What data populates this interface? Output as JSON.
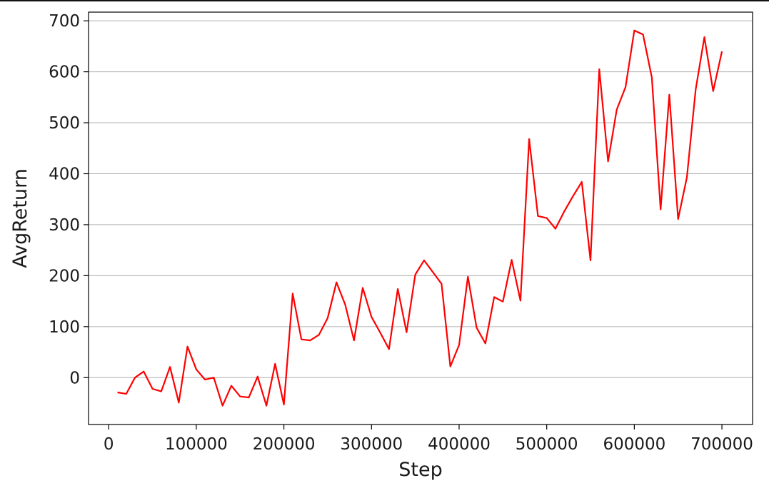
{
  "chart_data": {
    "type": "line",
    "title": "",
    "xlabel": "Step",
    "ylabel": "AvgReturn",
    "xlim": [
      -23000,
      735000
    ],
    "ylim": [
      -92,
      717
    ],
    "xticks": [
      0,
      100000,
      200000,
      300000,
      400000,
      500000,
      600000,
      700000
    ],
    "xtick_labels": [
      "0",
      "100000",
      "200000",
      "300000",
      "400000",
      "500000",
      "600000",
      "700000"
    ],
    "yticks": [
      0,
      100,
      200,
      300,
      400,
      500,
      600,
      700
    ],
    "ytick_labels": [
      "0",
      "100",
      "200",
      "300",
      "400",
      "500",
      "600",
      "700"
    ],
    "grid": "horizontal",
    "legend": "none",
    "series": [
      {
        "color": "#ff0000",
        "x": [
          10000,
          20000,
          30000,
          40000,
          50000,
          60000,
          70000,
          80000,
          90000,
          100000,
          110000,
          120000,
          130000,
          140000,
          150000,
          160000,
          170000,
          180000,
          190000,
          200000,
          210000,
          220000,
          230000,
          240000,
          250000,
          260000,
          270000,
          280000,
          290000,
          300000,
          310000,
          320000,
          330000,
          340000,
          350000,
          360000,
          370000,
          380000,
          390000,
          400000,
          410000,
          420000,
          430000,
          440000,
          450000,
          460000,
          470000,
          480000,
          490000,
          500000,
          510000,
          520000,
          530000,
          540000,
          550000,
          560000,
          570000,
          580000,
          590000,
          600000,
          610000,
          620000,
          630000,
          640000,
          650000,
          660000,
          670000,
          680000,
          690000,
          700000
        ],
        "values": [
          -29,
          -32,
          0,
          12,
          -22,
          -27,
          21,
          -49,
          61,
          16,
          -4,
          0,
          -55,
          -16,
          -37,
          -39,
          2,
          -55,
          27,
          -53,
          165,
          75,
          73,
          84,
          117,
          187,
          143,
          73,
          176,
          119,
          88,
          56,
          174,
          89,
          202,
          230,
          207,
          184,
          22,
          64,
          198,
          98,
          67,
          158,
          149,
          231,
          151,
          468,
          317,
          313,
          292,
          326,
          356,
          384,
          230,
          605,
          424,
          526,
          570,
          681,
          673,
          589,
          330,
          555,
          311,
          393,
          565,
          668,
          562,
          640
        ]
      }
    ]
  }
}
